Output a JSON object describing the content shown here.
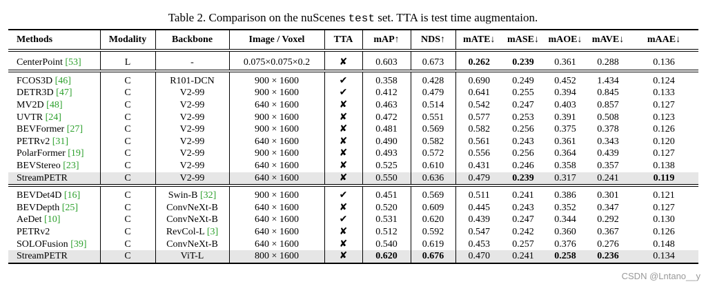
{
  "caption": {
    "parts": [
      "Table 2. Comparison on the nuScenes",
      "test",
      "set. TTA is test time augmentaion."
    ]
  },
  "table": {
    "header": [
      "Methods",
      "Modality",
      "Backbone",
      "Image / Voxel",
      "TTA",
      "mAP↑",
      "NDS↑",
      "mATE↓",
      "mASE↓",
      "mAOE↓",
      "mAVE↓",
      "mAAE↓"
    ],
    "groups": [
      {
        "rows": [
          {
            "cells": [
              [
                "CenterPoint",
                "[53]"
              ],
              "L",
              "-",
              "0.075×0.075×0.2",
              "✘",
              "0.603",
              "0.673",
              "0.262",
              "0.239",
              "0.361",
              "0.288",
              "0.136"
            ],
            "bold": [
              7,
              8
            ]
          }
        ]
      },
      {
        "rows": [
          {
            "cells": [
              [
                "FCOS3D",
                "[46]"
              ],
              "C",
              "R101-DCN",
              "900 × 1600",
              "✔",
              "0.358",
              "0.428",
              "0.690",
              "0.249",
              "0.452",
              "1.434",
              "0.124"
            ]
          },
          {
            "cells": [
              [
                "DETR3D",
                "[47]"
              ],
              "C",
              "V2-99",
              "900 × 1600",
              "✔",
              "0.412",
              "0.479",
              "0.641",
              "0.255",
              "0.394",
              "0.845",
              "0.133"
            ]
          },
          {
            "cells": [
              [
                "MV2D",
                "[48]"
              ],
              "C",
              "V2-99",
              "640 × 1600",
              "✘",
              "0.463",
              "0.514",
              "0.542",
              "0.247",
              "0.403",
              "0.857",
              "0.127"
            ]
          },
          {
            "cells": [
              [
                "UVTR",
                "[24]"
              ],
              "C",
              "V2-99",
              "900 × 1600",
              "✘",
              "0.472",
              "0.551",
              "0.577",
              "0.253",
              "0.391",
              "0.508",
              "0.123"
            ]
          },
          {
            "cells": [
              [
                "BEVFormer",
                "[27]"
              ],
              "C",
              "V2-99",
              "900 × 1600",
              "✘",
              "0.481",
              "0.569",
              "0.582",
              "0.256",
              "0.375",
              "0.378",
              "0.126"
            ]
          },
          {
            "cells": [
              [
                "PETRv2",
                "[31]"
              ],
              "C",
              "V2-99",
              "640 × 1600",
              "✘",
              "0.490",
              "0.582",
              "0.561",
              "0.243",
              "0.361",
              "0.343",
              "0.120"
            ]
          },
          {
            "cells": [
              [
                "PolarFormer",
                "[19]"
              ],
              "C",
              "V2-99",
              "900 × 1600",
              "✘",
              "0.493",
              "0.572",
              "0.556",
              "0.256",
              "0.364",
              "0.439",
              "0.127"
            ]
          },
          {
            "cells": [
              [
                "BEVStereo",
                "[23]"
              ],
              "C",
              "V2-99",
              "640 × 1600",
              "✘",
              "0.525",
              "0.610",
              "0.431",
              "0.246",
              "0.358",
              "0.357",
              "0.138"
            ]
          },
          {
            "cells": [
              "StreamPETR",
              "C",
              "V2-99",
              "640 × 1600",
              "✘",
              "0.550",
              "0.636",
              "0.479",
              "0.239",
              "0.317",
              "0.241",
              "0.119"
            ],
            "bold": [
              8,
              11
            ],
            "highlight": true
          }
        ]
      },
      {
        "rows": [
          {
            "cells": [
              [
                "BEVDet4D",
                "[16]"
              ],
              "C",
              [
                "Swin-B",
                "[32]"
              ],
              "900 × 1600",
              "✔",
              "0.451",
              "0.569",
              "0.511",
              "0.241",
              "0.386",
              "0.301",
              "0.121"
            ]
          },
          {
            "cells": [
              [
                "BEVDepth",
                "[25]"
              ],
              "C",
              "ConvNeXt-B",
              "640 × 1600",
              "✘",
              "0.520",
              "0.609",
              "0.445",
              "0.243",
              "0.352",
              "0.347",
              "0.127"
            ]
          },
          {
            "cells": [
              [
                "AeDet",
                "[10]"
              ],
              "C",
              "ConvNeXt-B",
              "640 × 1600",
              "✔",
              "0.531",
              "0.620",
              "0.439",
              "0.247",
              "0.344",
              "0.292",
              "0.130"
            ]
          },
          {
            "cells": [
              "PETRv2",
              "C",
              [
                "RevCol-L",
                "[3]"
              ],
              "640 × 1600",
              "✘",
              "0.512",
              "0.592",
              "0.547",
              "0.242",
              "0.360",
              "0.367",
              "0.126"
            ]
          },
          {
            "cells": [
              [
                "SOLOFusion",
                "[39]"
              ],
              "C",
              "ConvNeXt-B",
              "640 × 1600",
              "✘",
              "0.540",
              "0.619",
              "0.453",
              "0.257",
              "0.376",
              "0.276",
              "0.148"
            ]
          },
          {
            "cells": [
              "StreamPETR",
              "C",
              "ViT-L",
              "800 × 1600",
              "✘",
              "0.620",
              "0.676",
              "0.470",
              "0.241",
              "0.258",
              "0.236",
              "0.134"
            ],
            "bold": [
              5,
              6,
              9,
              10
            ],
            "highlight": true
          }
        ]
      }
    ]
  },
  "watermark": "CSDN @Lntano__y"
}
